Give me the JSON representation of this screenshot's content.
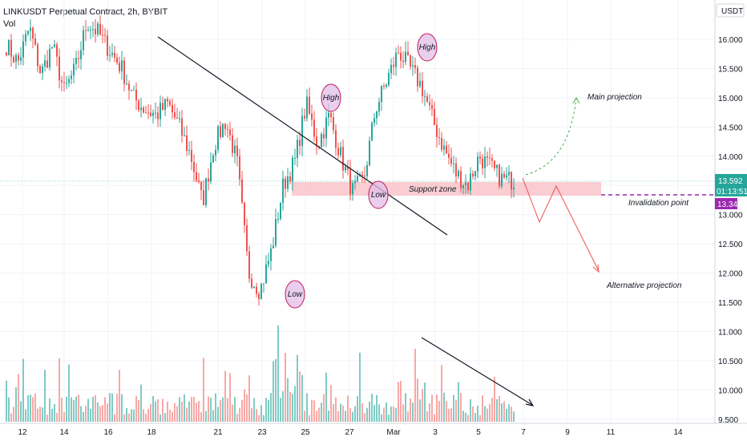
{
  "header": {
    "symbol": "LINKUSDT Perpetual Contract, 2h, BYBIT",
    "volume_label": "Vol"
  },
  "price_axis": {
    "currency": "USDT",
    "ticks": [
      "16.000",
      "15.500",
      "15.000",
      "14.500",
      "14.000",
      "13.500",
      "13.000",
      "12.500",
      "12.000",
      "11.500",
      "11.000",
      "10.500",
      "10.000",
      "9.500"
    ]
  },
  "time_axis": {
    "ticks": [
      "12",
      "14",
      "16",
      "18",
      "21",
      "23",
      "25",
      "27",
      "Mar",
      "3",
      "5",
      "7",
      "9",
      "11",
      "14"
    ]
  },
  "badges": {
    "last_price": "13.592",
    "countdown": "01:13:51",
    "invalidation_price": "13.341"
  },
  "annotations": {
    "support_zone": "Support zone",
    "invalidation_point": "Invalidation point",
    "main_projection": "Main projection",
    "alternative_projection": "Alternative projection",
    "high_1": "High",
    "high_2": "High",
    "low_1": "Low",
    "low_2": "Low"
  },
  "colors": {
    "up": "#26a69a",
    "down": "#ef5350",
    "support_zone": "#f8c8cc",
    "last_price_badge": "#26a69a",
    "invalidation": "#9c27b0",
    "circle_fill": "#e1bee7",
    "circle_stroke": "#c2185b",
    "main_projection": "#4caf50",
    "alt_projection": "#ef5350"
  },
  "chart_data": {
    "type": "candlestick",
    "ylim": [
      9.5,
      16.3
    ],
    "grid": true,
    "series": [
      {
        "name": "Vol",
        "type": "bar"
      }
    ],
    "key_levels": {
      "support_zone": [
        13.33,
        13.55
      ],
      "invalidation_point": 13.341,
      "last_price": 13.592
    },
    "swings": [
      {
        "label": "High",
        "price": 14.95
      },
      {
        "label": "Low",
        "price": 11.72
      },
      {
        "label": "Low",
        "price": 13.35
      },
      {
        "label": "High",
        "price": 15.85
      }
    ],
    "close_path": [
      15.9,
      15.6,
      16.2,
      15.4,
      15.9,
      15.1,
      15.5,
      16.3,
      16.1,
      15.8,
      15.5,
      15.0,
      14.8,
      14.7,
      14.9,
      14.5,
      14.0,
      13.2,
      14.2,
      14.6,
      13.9,
      12.0,
      11.7,
      12.4,
      13.5,
      13.9,
      14.9,
      14.2,
      14.7,
      14.0,
      13.4,
      13.6,
      14.8,
      15.3,
      15.8,
      15.5,
      15.2,
      14.6,
      14.1,
      13.7,
      13.5,
      14.0,
      13.8,
      13.6,
      13.59
    ]
  }
}
